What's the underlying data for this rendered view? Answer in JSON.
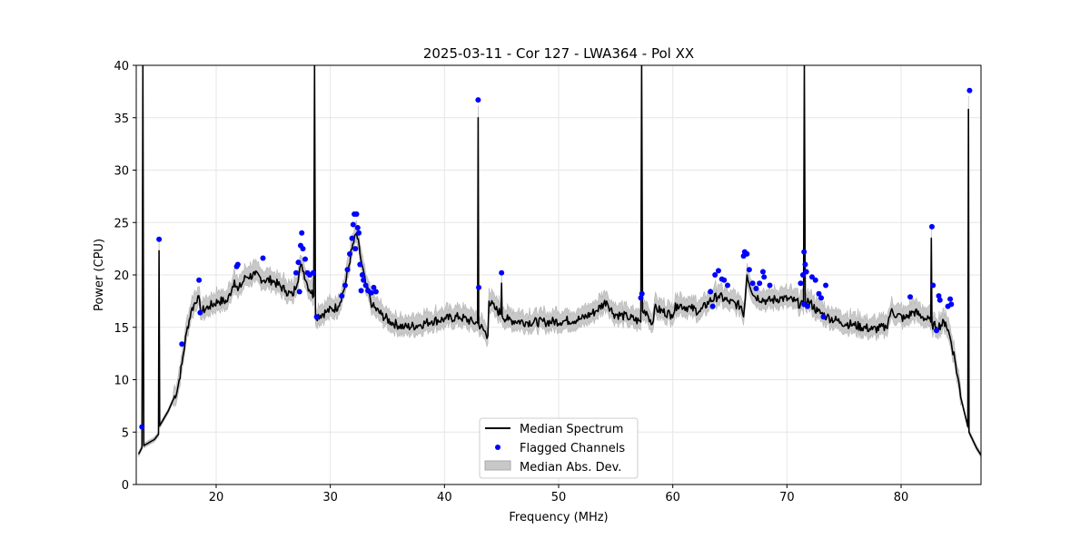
{
  "chart_data": {
    "type": "line",
    "title": "2025-03-11 - Cor 127 - LWA364 - Pol XX",
    "xlabel": "Frequency (MHz)",
    "ylabel": "Power (CPU)",
    "xlim": [
      13,
      87
    ],
    "ylim": [
      0,
      40
    ],
    "xticks": [
      20,
      30,
      40,
      50,
      60,
      70,
      80
    ],
    "yticks": [
      0,
      5,
      10,
      15,
      20,
      25,
      30,
      35,
      40
    ],
    "grid": true,
    "legend_position": "bottom-center",
    "legend": [
      "Median Spectrum",
      "Flagged Channels",
      "Median Abs. Dev."
    ],
    "series": [
      {
        "name": "Median Spectrum",
        "color": "#000000",
        "points": [
          [
            13.2,
            2.9
          ],
          [
            13.5,
            3.5
          ],
          [
            13.58,
            40
          ],
          [
            13.66,
            3.7
          ],
          [
            13.8,
            3.8
          ],
          [
            14.6,
            4.3
          ],
          [
            14.95,
            4.8
          ],
          [
            15.0,
            22.3
          ],
          [
            15.05,
            5.6
          ],
          [
            15.8,
            7.0
          ],
          [
            16.6,
            9.0
          ],
          [
            17.0,
            11.5
          ],
          [
            17.4,
            14.5
          ],
          [
            17.8,
            16.5
          ],
          [
            18.4,
            18.0
          ],
          [
            18.7,
            16.5
          ],
          [
            19.4,
            17.0
          ],
          [
            20.2,
            17.5
          ],
          [
            21.0,
            17.5
          ],
          [
            21.6,
            19.5
          ],
          [
            21.9,
            18.5
          ],
          [
            22.6,
            19.8
          ],
          [
            23.4,
            20.0
          ],
          [
            24.2,
            19.5
          ],
          [
            24.9,
            19.5
          ],
          [
            26.1,
            18.5
          ],
          [
            26.7,
            18.0
          ],
          [
            27.5,
            21.0
          ],
          [
            28.0,
            19.0
          ],
          [
            28.55,
            18.0
          ],
          [
            28.62,
            40
          ],
          [
            28.7,
            16.0
          ],
          [
            29.7,
            16.5
          ],
          [
            30.7,
            17.0
          ],
          [
            31.3,
            19.0
          ],
          [
            31.9,
            22.5
          ],
          [
            32.3,
            24.0
          ],
          [
            32.6,
            22.0
          ],
          [
            33.1,
            19.0
          ],
          [
            33.7,
            17.0
          ],
          [
            34.5,
            16.2
          ],
          [
            35.3,
            15.5
          ],
          [
            36.5,
            15.0
          ],
          [
            37.7,
            15.2
          ],
          [
            38.9,
            15.6
          ],
          [
            40.1,
            15.8
          ],
          [
            41.3,
            16.0
          ],
          [
            42.5,
            15.5
          ],
          [
            42.9,
            15.4
          ],
          [
            42.95,
            35.0
          ],
          [
            43.0,
            15.3
          ],
          [
            43.8,
            14.2
          ],
          [
            43.9,
            17.5
          ],
          [
            44.4,
            16.8
          ],
          [
            44.95,
            16.3
          ],
          [
            45.0,
            19.2
          ],
          [
            45.05,
            16.1
          ],
          [
            45.6,
            15.7
          ],
          [
            47.2,
            15.5
          ],
          [
            48.8,
            15.5
          ],
          [
            50.4,
            15.6
          ],
          [
            52.0,
            15.8
          ],
          [
            53.2,
            16.5
          ],
          [
            54.2,
            17.5
          ],
          [
            54.8,
            16.3
          ],
          [
            56.0,
            16.0
          ],
          [
            57.2,
            15.5
          ],
          [
            57.27,
            40
          ],
          [
            57.35,
            16.5
          ],
          [
            57.7,
            16.5
          ],
          [
            58.2,
            15.3
          ],
          [
            58.4,
            16.8
          ],
          [
            59.9,
            16.2
          ],
          [
            60.4,
            17.2
          ],
          [
            61.6,
            16.8
          ],
          [
            62.4,
            16.5
          ],
          [
            63.2,
            17.5
          ],
          [
            64.0,
            18.0
          ],
          [
            64.8,
            17.5
          ],
          [
            66.0,
            17.0
          ],
          [
            66.2,
            16.0
          ],
          [
            66.5,
            20.0
          ],
          [
            67.1,
            18.0
          ],
          [
            68.3,
            17.5
          ],
          [
            69.5,
            17.8
          ],
          [
            70.7,
            17.5
          ],
          [
            71.45,
            17.0
          ],
          [
            71.52,
            40
          ],
          [
            71.6,
            17.5
          ],
          [
            71.9,
            17.5
          ],
          [
            72.7,
            16.5
          ],
          [
            73.5,
            16.0
          ],
          [
            74.7,
            15.5
          ],
          [
            75.9,
            15.2
          ],
          [
            77.5,
            14.8
          ],
          [
            78.7,
            15.0
          ],
          [
            79.1,
            16.5
          ],
          [
            80.3,
            15.8
          ],
          [
            81.1,
            16.5
          ],
          [
            81.9,
            16.0
          ],
          [
            82.6,
            15.5
          ],
          [
            82.65,
            23.5
          ],
          [
            82.7,
            15.3
          ],
          [
            83.1,
            15.0
          ],
          [
            83.9,
            15.5
          ],
          [
            84.3,
            14.0
          ],
          [
            84.7,
            12.0
          ],
          [
            85.3,
            8.0
          ],
          [
            85.85,
            5.5
          ],
          [
            85.9,
            35.8
          ],
          [
            85.95,
            5.0
          ],
          [
            86.6,
            3.5
          ],
          [
            87.0,
            2.8
          ]
        ]
      },
      {
        "name": "Flagged Channels",
        "color": "#0000ff",
        "points": [
          [
            13.5,
            5.5
          ],
          [
            15.0,
            23.4
          ],
          [
            17.0,
            13.4
          ],
          [
            18.5,
            19.5
          ],
          [
            18.6,
            16.4
          ],
          [
            21.8,
            20.8
          ],
          [
            21.9,
            21.0
          ],
          [
            24.1,
            21.6
          ],
          [
            27.5,
            24.0
          ],
          [
            27.4,
            22.8
          ],
          [
            27.2,
            21.2
          ],
          [
            27.0,
            20.2
          ],
          [
            27.3,
            18.4
          ],
          [
            27.6,
            22.5
          ],
          [
            27.8,
            21.5
          ],
          [
            28.0,
            20.2
          ],
          [
            28.2,
            20.0
          ],
          [
            28.5,
            20.2
          ],
          [
            28.8,
            16.0
          ],
          [
            31.0,
            18.0
          ],
          [
            31.3,
            19.0
          ],
          [
            31.5,
            20.5
          ],
          [
            31.7,
            22.0
          ],
          [
            31.9,
            23.5
          ],
          [
            32.0,
            24.8
          ],
          [
            32.1,
            25.8
          ],
          [
            32.3,
            25.8
          ],
          [
            32.4,
            24.5
          ],
          [
            32.5,
            24.0
          ],
          [
            32.2,
            22.5
          ],
          [
            32.6,
            21.0
          ],
          [
            32.8,
            20.0
          ],
          [
            32.9,
            19.5
          ],
          [
            33.1,
            19.0
          ],
          [
            33.3,
            18.5
          ],
          [
            33.6,
            18.3
          ],
          [
            33.8,
            18.8
          ],
          [
            34.0,
            18.4
          ],
          [
            32.7,
            18.5
          ],
          [
            42.95,
            36.7
          ],
          [
            43.0,
            18.8
          ],
          [
            45.0,
            20.2
          ],
          [
            57.2,
            17.8
          ],
          [
            57.3,
            18.2
          ],
          [
            63.3,
            18.4
          ],
          [
            63.5,
            17.0
          ],
          [
            63.7,
            20.0
          ],
          [
            64.0,
            20.4
          ],
          [
            64.3,
            19.6
          ],
          [
            64.5,
            19.5
          ],
          [
            64.8,
            19.0
          ],
          [
            66.2,
            21.8
          ],
          [
            66.3,
            22.2
          ],
          [
            66.5,
            22.0
          ],
          [
            66.7,
            20.5
          ],
          [
            67.0,
            19.2
          ],
          [
            67.3,
            18.7
          ],
          [
            67.6,
            19.2
          ],
          [
            67.9,
            20.3
          ],
          [
            68.0,
            19.8
          ],
          [
            68.5,
            19.0
          ],
          [
            71.2,
            19.2
          ],
          [
            71.4,
            20.0
          ],
          [
            71.5,
            22.2
          ],
          [
            71.6,
            21.0
          ],
          [
            71.7,
            20.3
          ],
          [
            71.5,
            17.2
          ],
          [
            71.8,
            17.0
          ],
          [
            72.2,
            19.8
          ],
          [
            72.5,
            19.5
          ],
          [
            72.8,
            18.2
          ],
          [
            73.0,
            17.8
          ],
          [
            73.2,
            16.0
          ],
          [
            73.4,
            19.0
          ],
          [
            80.8,
            17.9
          ],
          [
            82.7,
            24.6
          ],
          [
            82.8,
            19.0
          ],
          [
            83.1,
            14.7
          ],
          [
            83.3,
            18.0
          ],
          [
            83.4,
            17.6
          ],
          [
            84.1,
            17.0
          ],
          [
            84.3,
            17.7
          ],
          [
            84.4,
            17.2
          ],
          [
            86.0,
            37.6
          ]
        ]
      },
      {
        "name": "Median Abs. Dev.",
        "color": "#c8c8c8",
        "half_width": 0.8
      }
    ]
  }
}
